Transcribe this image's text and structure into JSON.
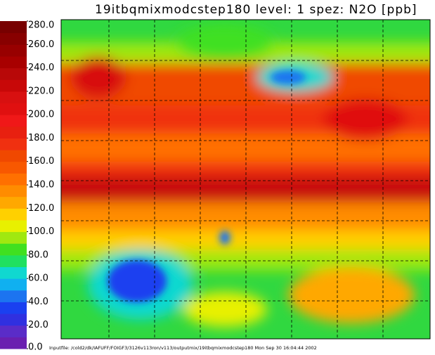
{
  "map": {
    "title": "19itbqmixmodcstep180  level: 1  spez: N2O   [ppb]",
    "colorbar": {
      "range": [
        0,
        280
      ],
      "ticks": [
        {
          "value": 0,
          "label": "0.0"
        },
        {
          "value": 20,
          "label": "20.0"
        },
        {
          "value": 40,
          "label": "40.0"
        },
        {
          "value": 60,
          "label": "60.0"
        },
        {
          "value": 80,
          "label": "80.0"
        },
        {
          "value": 100,
          "label": "100.0"
        },
        {
          "value": 120,
          "label": "120.0"
        },
        {
          "value": 140,
          "label": "140.0"
        },
        {
          "value": 160,
          "label": "160.0"
        },
        {
          "value": 180,
          "label": "180.0"
        },
        {
          "value": 200,
          "label": "200.0"
        },
        {
          "value": 220,
          "label": "220.0"
        },
        {
          "value": 240,
          "label": "240.0"
        },
        {
          "value": 260,
          "label": "260.0"
        },
        {
          "value": 280,
          "label": "280.0"
        }
      ],
      "colors": [
        "#6a1fb0",
        "#5a2cc8",
        "#3030e0",
        "#1a40f0",
        "#1c74f0",
        "#10b0f0",
        "#10d8d0",
        "#20e060",
        "#40e020",
        "#a0e810",
        "#e8f000",
        "#ffd000",
        "#ffa800",
        "#ff8c00",
        "#ff7000",
        "#f85800",
        "#f04800",
        "#f03010",
        "#e82010",
        "#f01818",
        "#e01010",
        "#d81010",
        "#c80808",
        "#b80808",
        "#a80000",
        "#980000",
        "#880000",
        "#780000"
      ]
    },
    "footer": "Inputfile: /cold2/dk/IAFUFF/FOIGF3/3126v113ron/v113/outputmix/19itbqmixmodcstep180   Mon Sep 30 16:04:44 2002"
  }
}
